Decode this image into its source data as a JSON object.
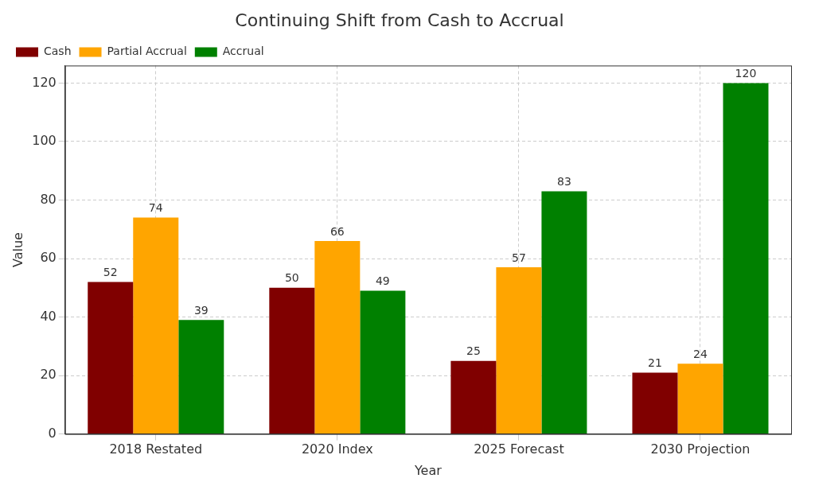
{
  "chart_data": {
    "type": "bar",
    "title": "Continuing Shift from Cash to Accrual",
    "x_label": "Year",
    "y_label": "Value",
    "categories": [
      "2018 Restated",
      "2020 Index",
      "2025 Forecast",
      "2030 Projection"
    ],
    "series": [
      {
        "name": "Cash",
        "color": "#800000",
        "values": [
          52,
          50,
          25,
          21
        ]
      },
      {
        "name": "Partial Accrual",
        "color": "#ffa500",
        "values": [
          74,
          66,
          57,
          24
        ]
      },
      {
        "name": "Accrual",
        "color": "#008000",
        "values": [
          39,
          49,
          83,
          120
        ]
      }
    ],
    "ylim": [
      0,
      126
    ],
    "yticks": [
      0,
      20,
      40,
      60,
      80,
      100,
      120
    ],
    "grid": true,
    "legend": "upper left",
    "data_labels": true
  }
}
